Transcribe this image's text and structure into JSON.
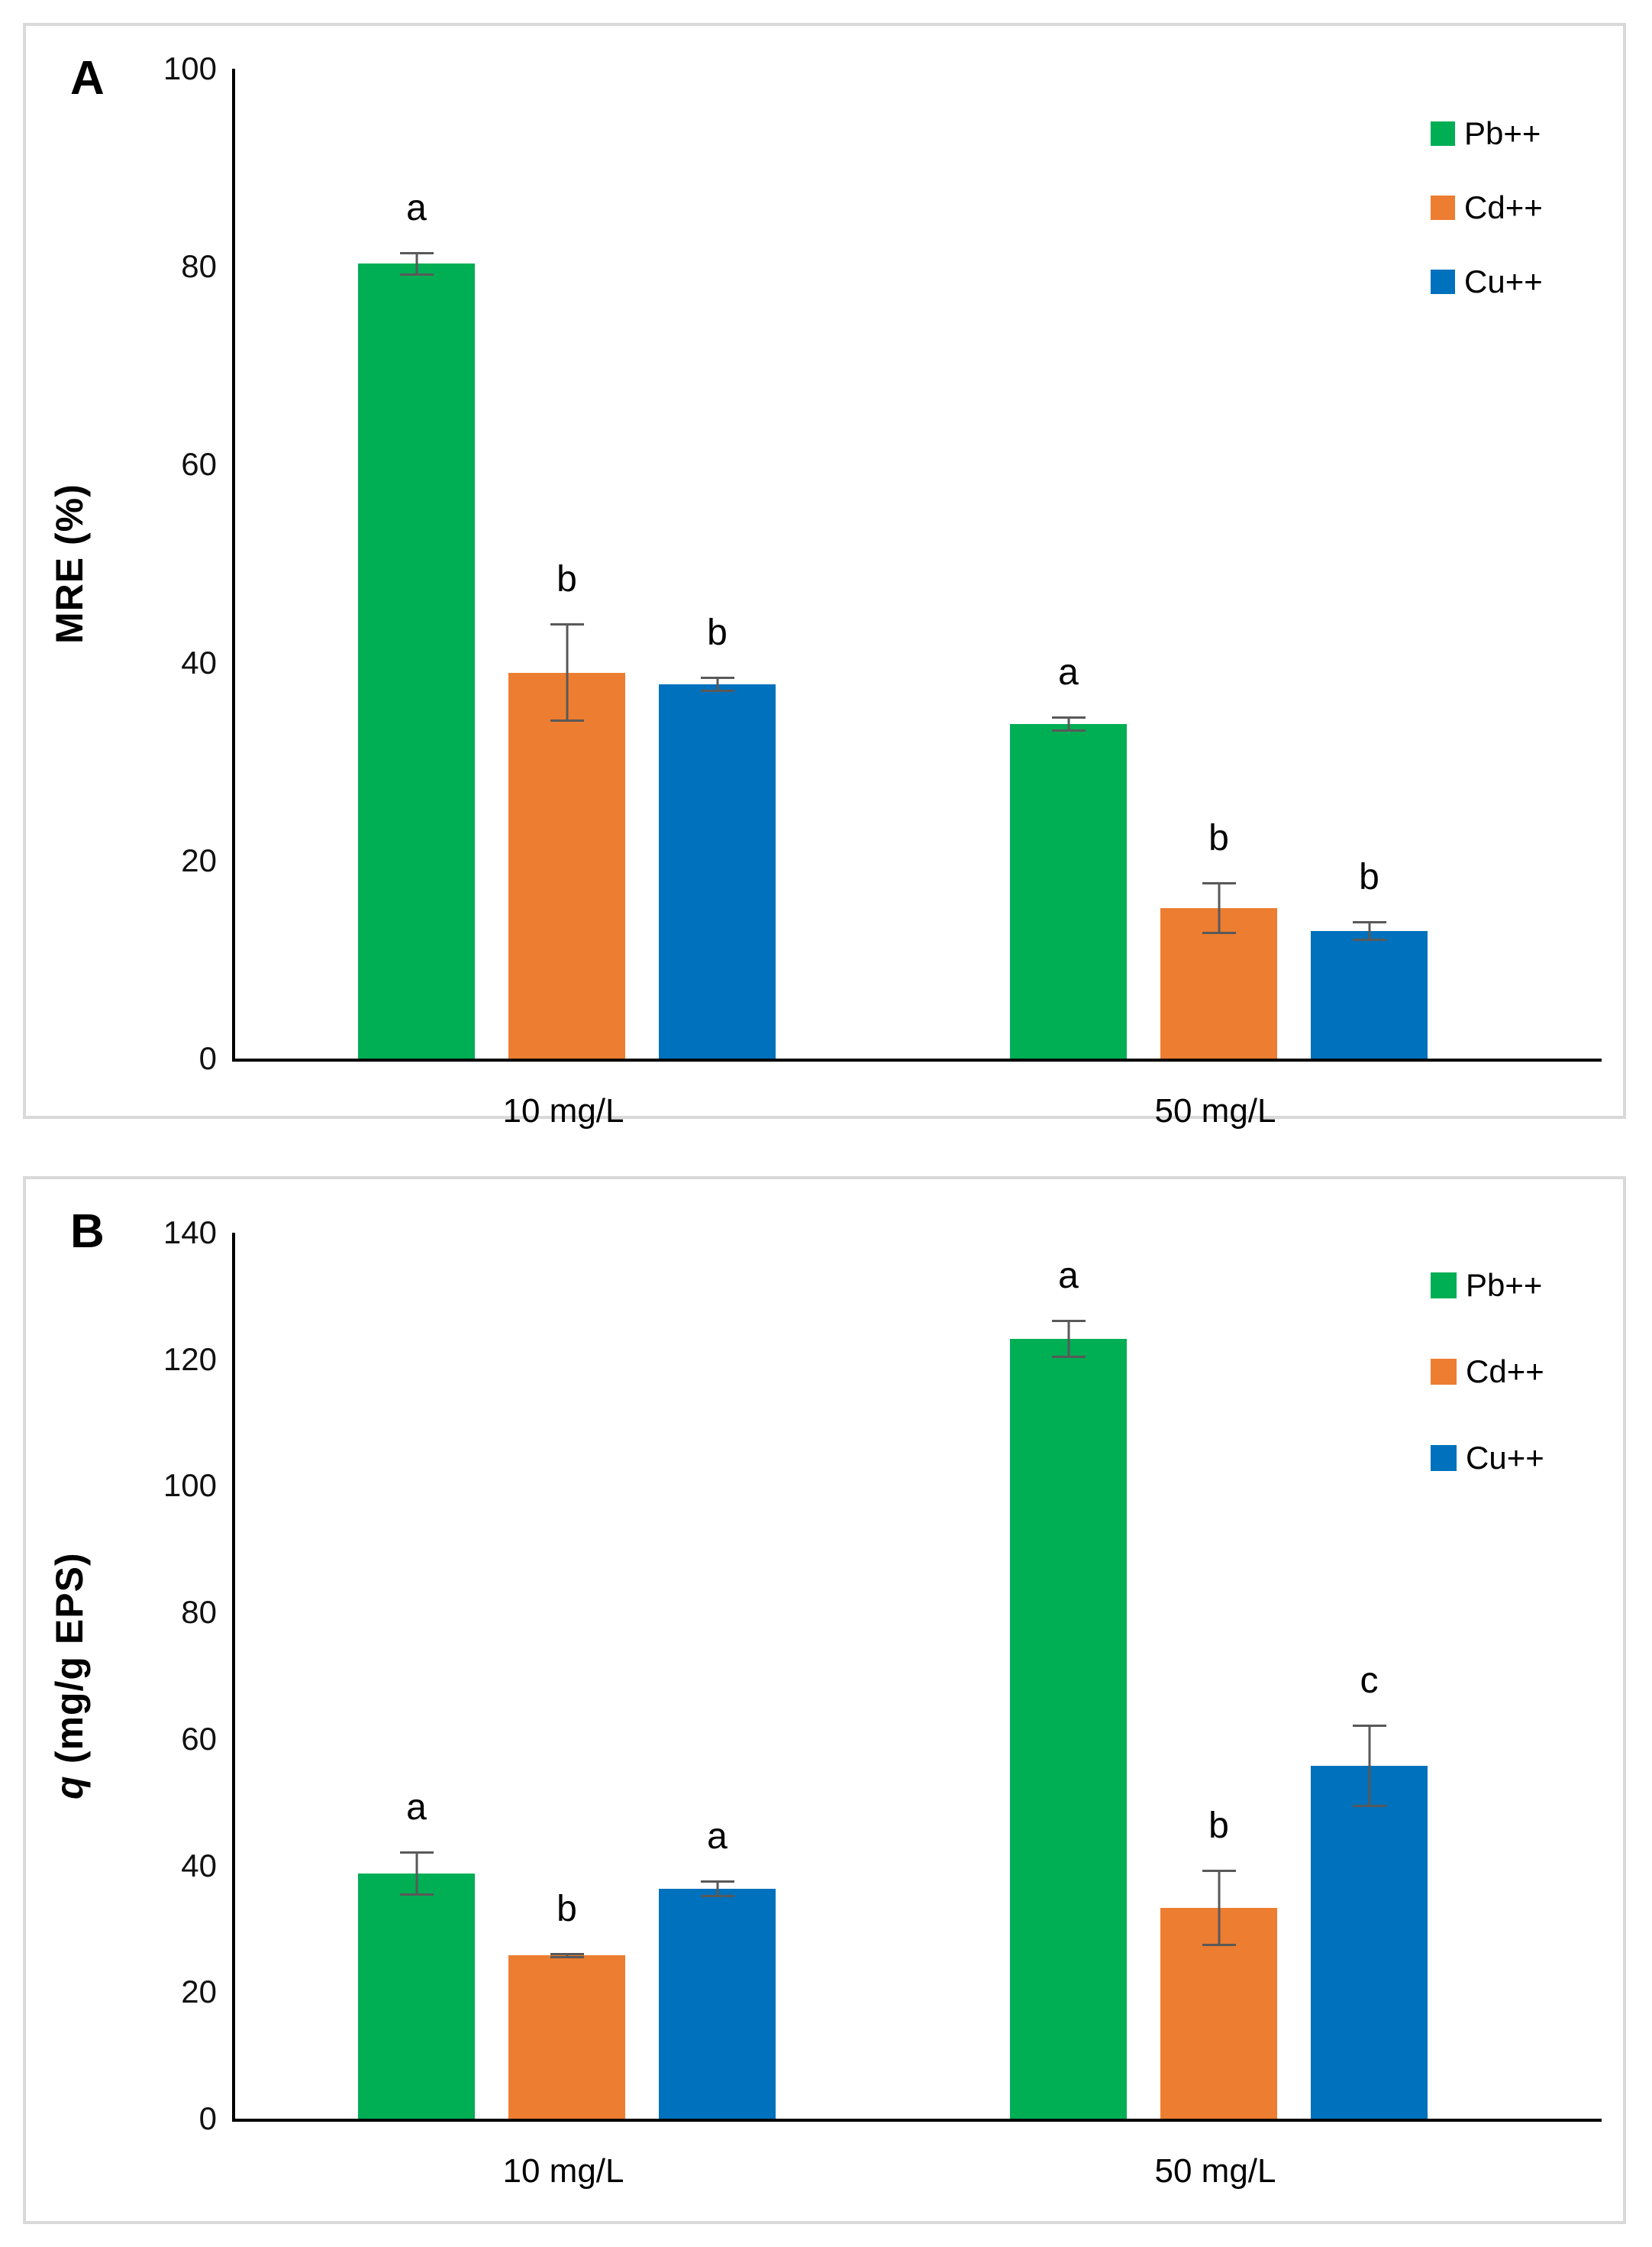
{
  "page": {
    "background": "#ffffff",
    "panel_border_color": "#d9d9d9"
  },
  "colors": {
    "pb_green": "#00AE54",
    "cd_orange": "#ED7D31",
    "cu_blue": "#0071BC",
    "error_bar_gray": "#595959",
    "axis_black": "#000000"
  },
  "chart_data": [
    {
      "type": "bar",
      "panel_label": "A",
      "title": "",
      "xlabel": "",
      "ylabel_italic": "",
      "ylabel_rest": "MRE (%)",
      "ylim": [
        0,
        100
      ],
      "yticks": [
        0,
        20,
        40,
        60,
        80,
        100
      ],
      "grid": false,
      "legend_position": "top-right",
      "categories": [
        "10 mg/L",
        "50 mg/L"
      ],
      "series": [
        {
          "name": "Pb++",
          "color": "#00AE54",
          "values": [
            80.3,
            33.8
          ],
          "errors": [
            1.2,
            0.8
          ],
          "letters": [
            "a",
            "a"
          ]
        },
        {
          "name": "Cd++",
          "color": "#ED7D31",
          "values": [
            39.0,
            15.2
          ],
          "errors": [
            5.0,
            2.6
          ],
          "letters": [
            "b",
            "b"
          ]
        },
        {
          "name": "Cu++",
          "color": "#0071BC",
          "values": [
            37.8,
            12.9
          ],
          "errors": [
            0.8,
            1.0
          ],
          "letters": [
            "b",
            "b"
          ]
        }
      ]
    },
    {
      "type": "bar",
      "panel_label": "B",
      "title": "",
      "xlabel": "",
      "ylabel_italic": "q",
      "ylabel_rest": " (mg/g EPS)",
      "ylim": [
        0,
        140
      ],
      "yticks": [
        0,
        20,
        40,
        60,
        80,
        100,
        120,
        140
      ],
      "grid": false,
      "legend_position": "top-right",
      "categories": [
        "10 mg/L",
        "50 mg/L"
      ],
      "series": [
        {
          "name": "Pb++",
          "color": "#00AE54",
          "values": [
            38.8,
            123.2
          ],
          "errors": [
            3.5,
            3.0
          ],
          "letters": [
            "a",
            "a"
          ]
        },
        {
          "name": "Cd++",
          "color": "#ED7D31",
          "values": [
            25.8,
            33.3
          ],
          "errors": [
            0.4,
            6.0
          ],
          "letters": [
            "b",
            "b"
          ]
        },
        {
          "name": "Cu++",
          "color": "#0071BC",
          "values": [
            36.3,
            55.8
          ],
          "errors": [
            1.3,
            6.5
          ],
          "letters": [
            "a",
            "c"
          ]
        }
      ]
    }
  ]
}
